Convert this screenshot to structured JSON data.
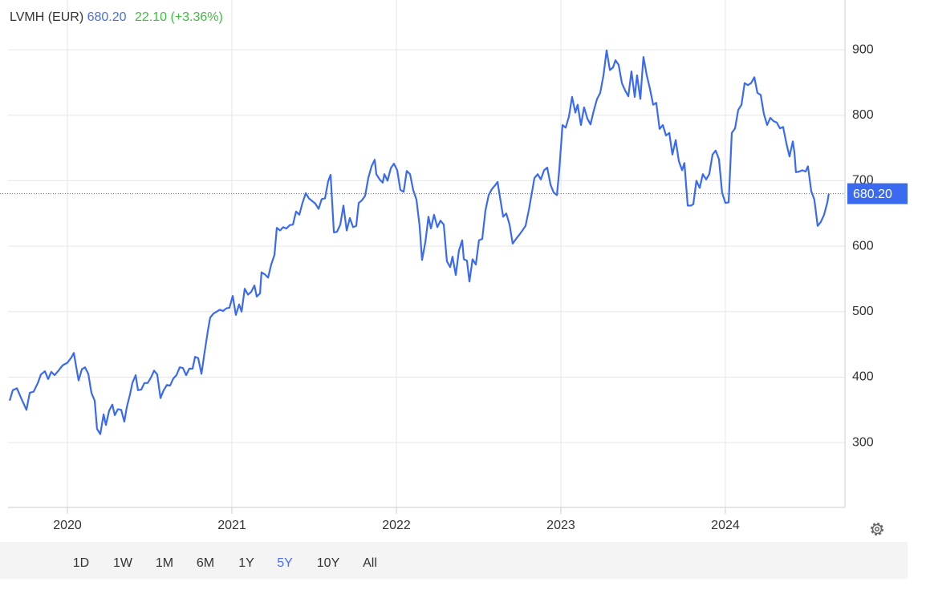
{
  "chart_data": {
    "type": "line",
    "title": "LVMH (EUR)",
    "price": "680.20",
    "change": "22.10 (+3.36%)",
    "current_price": 680.2,
    "current_price_label": "680.20",
    "color": "#3a6af0",
    "grid": true,
    "xlim": [
      2019.639,
      2024.727
    ],
    "xticks": [
      2020,
      2021,
      2022,
      2023,
      2024
    ],
    "ylim": [
      201,
      976
    ],
    "yticks": [
      300,
      400,
      500,
      600,
      700,
      800,
      900
    ],
    "x": [
      2019.649,
      2019.668,
      2019.693,
      2019.722,
      2019.751,
      2019.771,
      2019.795,
      2019.82,
      2019.839,
      2019.863,
      2019.883,
      2019.902,
      2019.922,
      2019.946,
      2019.971,
      2020.0,
      2020.024,
      2020.039,
      2020.054,
      2020.068,
      2020.088,
      2020.107,
      2020.127,
      2020.146,
      2020.166,
      2020.18,
      2020.2,
      2020.22,
      2020.234,
      2020.254,
      2020.273,
      2020.288,
      2020.307,
      2020.327,
      2020.346,
      2020.361,
      2020.38,
      2020.395,
      2020.415,
      2020.429,
      2020.449,
      2020.468,
      2020.488,
      2020.507,
      2020.527,
      2020.546,
      2020.566,
      2020.585,
      2020.605,
      2020.624,
      2020.644,
      2020.663,
      2020.683,
      2020.702,
      2020.722,
      2020.741,
      2020.761,
      2020.776,
      2020.795,
      2020.815,
      2020.834,
      2020.854,
      2020.868,
      2020.888,
      2020.907,
      2020.927,
      2020.946,
      2020.966,
      2020.985,
      2021.005,
      2021.024,
      2021.044,
      2021.059,
      2021.078,
      2021.098,
      2021.117,
      2021.137,
      2021.151,
      2021.171,
      2021.18,
      2021.2,
      2021.22,
      2021.239,
      2021.259,
      2021.273,
      2021.293,
      2021.312,
      2021.332,
      2021.351,
      2021.371,
      2021.39,
      2021.41,
      2021.429,
      2021.449,
      2021.468,
      2021.488,
      2021.507,
      2021.527,
      2021.546,
      2021.566,
      2021.585,
      2021.6,
      2021.62,
      2021.639,
      2021.659,
      2021.678,
      2021.698,
      2021.717,
      2021.737,
      2021.756,
      2021.771,
      2021.79,
      2021.81,
      2021.829,
      2021.849,
      2021.868,
      2021.878,
      2021.898,
      2021.917,
      2021.927,
      2021.946,
      2021.966,
      2021.985,
      2022.005,
      2022.024,
      2022.044,
      2022.063,
      2022.083,
      2022.102,
      2022.122,
      2022.141,
      2022.156,
      2022.176,
      2022.195,
      2022.21,
      2022.229,
      2022.249,
      2022.268,
      2022.288,
      2022.307,
      2022.327,
      2022.341,
      2022.361,
      2022.38,
      2022.4,
      2022.41,
      2022.429,
      2022.444,
      2022.463,
      2022.483,
      2022.502,
      2022.522,
      2022.541,
      2022.561,
      2022.58,
      2022.6,
      2022.615,
      2022.629,
      2022.649,
      2022.668,
      2022.688,
      2022.707,
      2022.727,
      2022.746,
      2022.766,
      2022.785,
      2022.805,
      2022.824,
      2022.839,
      2022.859,
      2022.878,
      2022.898,
      2022.917,
      2022.937,
      2022.956,
      2022.976,
      2022.99,
      2023.01,
      2023.029,
      2023.049,
      2023.068,
      2023.088,
      2023.102,
      2023.122,
      2023.141,
      2023.161,
      2023.18,
      2023.2,
      2023.22,
      2023.239,
      2023.259,
      2023.278,
      2023.298,
      2023.317,
      2023.332,
      2023.351,
      2023.371,
      2023.39,
      2023.41,
      2023.429,
      2023.449,
      2023.463,
      2023.483,
      2023.502,
      2023.522,
      2023.541,
      2023.561,
      2023.58,
      2023.6,
      2023.62,
      2023.639,
      2023.659,
      2023.678,
      2023.698,
      2023.717,
      2023.737,
      2023.751,
      2023.771,
      2023.79,
      2023.805,
      2023.824,
      2023.844,
      2023.863,
      2023.883,
      2023.902,
      2023.922,
      2023.941,
      2023.961,
      2023.98,
      2024.0,
      2024.02,
      2024.039,
      2024.059,
      2024.078,
      2024.098,
      2024.117,
      2024.137,
      2024.156,
      2024.176,
      2024.195,
      2024.215,
      2024.234,
      2024.254,
      2024.273,
      2024.293,
      2024.312,
      2024.332,
      2024.351,
      2024.371,
      2024.39,
      2024.41,
      2024.42,
      2024.429,
      2024.449,
      2024.468,
      2024.488,
      2024.502,
      2024.522,
      2024.541,
      2024.561,
      2024.58,
      2024.6,
      2024.62,
      2024.629
    ],
    "values": [
      364,
      380,
      383,
      366,
      350,
      376,
      378,
      391,
      404,
      409,
      397,
      408,
      403,
      410,
      418,
      422,
      430,
      437,
      415,
      395,
      412,
      415,
      405,
      376,
      364,
      321,
      313,
      343,
      327,
      349,
      358,
      342,
      351,
      350,
      332,
      354,
      373,
      391,
      403,
      380,
      381,
      391,
      391,
      399,
      410,
      404,
      368,
      380,
      388,
      387,
      398,
      403,
      415,
      414,
      403,
      413,
      413,
      431,
      429,
      405,
      438,
      471,
      491,
      497,
      500,
      503,
      501,
      505,
      506,
      524,
      495,
      511,
      500,
      535,
      526,
      530,
      540,
      523,
      528,
      560,
      557,
      552,
      572,
      587,
      628,
      624,
      629,
      627,
      632,
      633,
      653,
      648,
      666,
      681,
      673,
      669,
      665,
      657,
      672,
      673,
      699,
      709,
      621,
      622,
      633,
      662,
      624,
      643,
      629,
      631,
      666,
      670,
      677,
      704,
      722,
      732,
      710,
      702,
      697,
      710,
      700,
      719,
      726,
      716,
      686,
      683,
      715,
      710,
      686,
      671,
      631,
      579,
      606,
      645,
      627,
      648,
      629,
      639,
      633,
      577,
      568,
      584,
      556,
      593,
      609,
      580,
      578,
      546,
      580,
      572,
      609,
      611,
      654,
      678,
      687,
      693,
      698,
      676,
      645,
      650,
      633,
      604,
      611,
      617,
      624,
      631,
      655,
      682,
      704,
      710,
      702,
      716,
      720,
      694,
      682,
      678,
      716,
      785,
      781,
      798,
      828,
      804,
      816,
      785,
      812,
      795,
      786,
      807,
      825,
      834,
      861,
      899,
      869,
      873,
      884,
      877,
      849,
      838,
      829,
      867,
      828,
      861,
      825,
      889,
      861,
      841,
      816,
      819,
      779,
      785,
      769,
      773,
      740,
      762,
      730,
      716,
      727,
      662,
      662,
      664,
      700,
      689,
      710,
      702,
      710,
      740,
      746,
      733,
      682,
      666,
      667,
      773,
      780,
      808,
      816,
      849,
      846,
      849,
      858,
      834,
      831,
      802,
      785,
      796,
      791,
      789,
      780,
      782,
      757,
      737,
      760,
      743,
      713,
      714,
      716,
      714,
      722,
      684,
      671,
      631,
      637,
      648,
      667,
      680.2
    ]
  },
  "toolbar": {
    "buttons": [
      "1D",
      "1W",
      "1M",
      "6M",
      "1Y",
      "5Y",
      "10Y",
      "All"
    ],
    "active": 5
  }
}
